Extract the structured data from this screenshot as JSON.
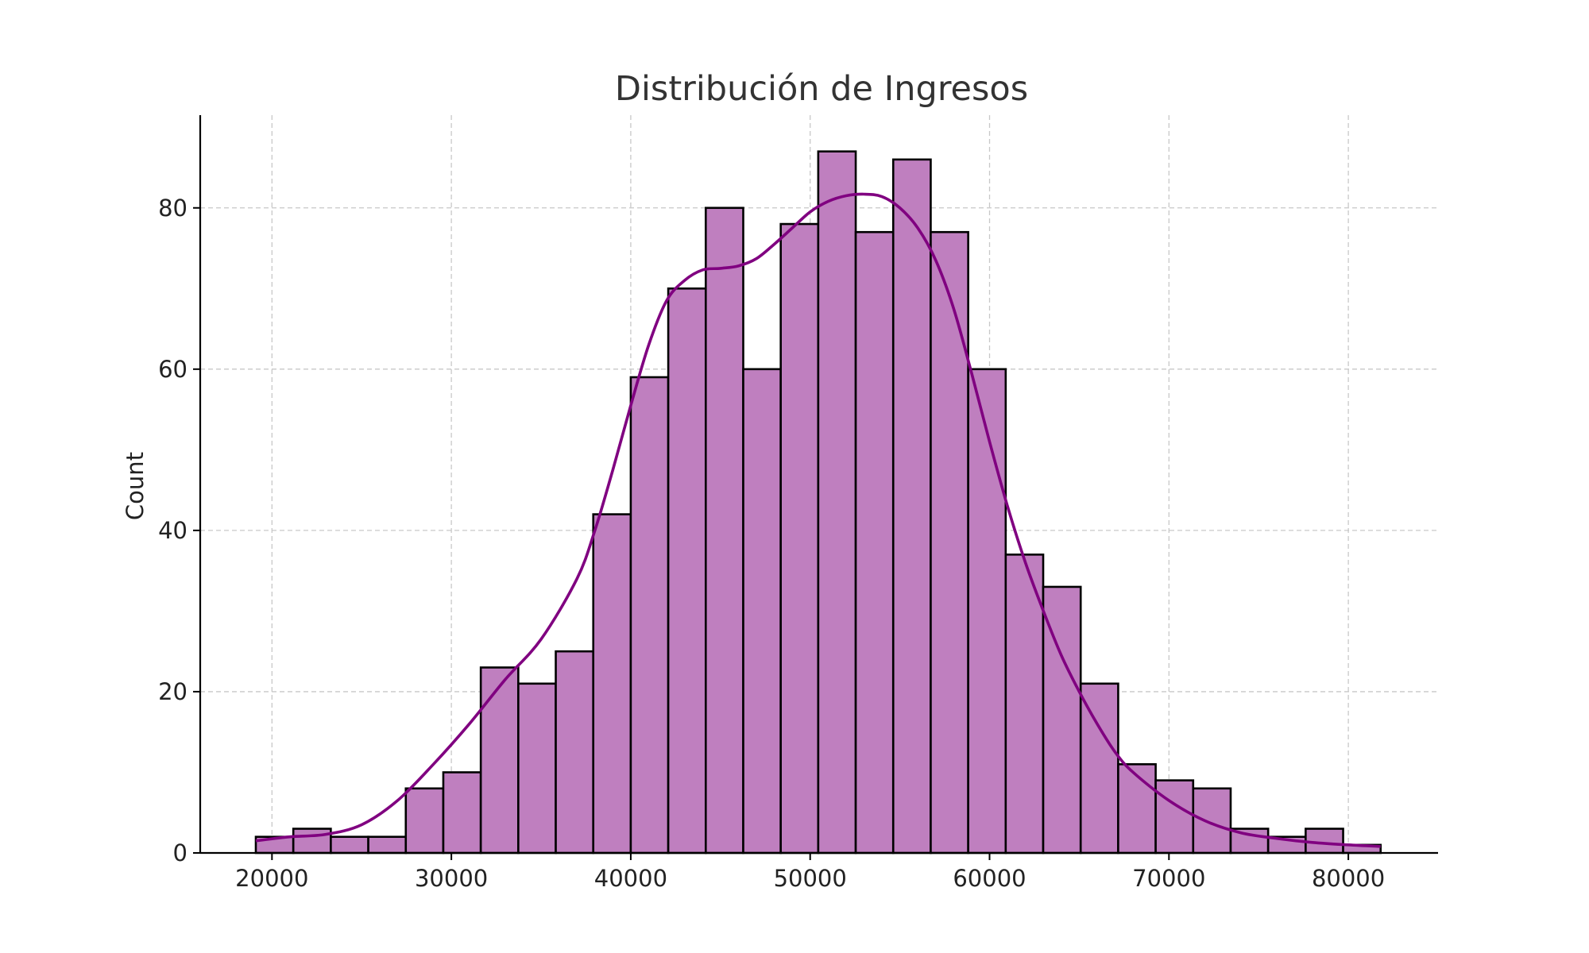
{
  "chart_data": {
    "type": "bar",
    "subtype": "histogram",
    "title": "Distribución de Ingresos",
    "xlabel": "",
    "ylabel": "Count",
    "xlim": [
      16000,
      85000
    ],
    "ylim": [
      0,
      91.5
    ],
    "xticks": [
      20000,
      30000,
      40000,
      50000,
      60000,
      70000,
      80000
    ],
    "yticks": [
      0,
      20,
      40,
      60,
      80
    ],
    "bin_start": 19100,
    "bin_width": 2090,
    "values": [
      2,
      3,
      2,
      2,
      8,
      10,
      23,
      21,
      25,
      42,
      59,
      70,
      80,
      60,
      78,
      87,
      77,
      86,
      77,
      60,
      37,
      33,
      21,
      11,
      9,
      8,
      3,
      2,
      3,
      1
    ],
    "kde": {
      "x": [
        19100,
        21000,
        23000,
        25000,
        27000,
        29000,
        31000,
        33000,
        35000,
        37000,
        38000,
        39000,
        40000,
        41000,
        42000,
        43000,
        44000,
        45000,
        46000,
        47000,
        48000,
        49000,
        50000,
        51000,
        52000,
        53000,
        54000,
        55000,
        56000,
        57000,
        58000,
        59000,
        60000,
        61000,
        62000,
        63000,
        64000,
        65000,
        66000,
        67000,
        68000,
        70000,
        72000,
        74000,
        76000,
        78000,
        80000,
        81800
      ],
      "y": [
        1.5,
        2.0,
        2.3,
        3.5,
        6.5,
        11,
        16,
        21.5,
        26.5,
        34,
        40,
        47.5,
        55.5,
        63,
        68.5,
        71,
        72.3,
        72.5,
        72.8,
        73.7,
        75.5,
        77.5,
        79.5,
        80.8,
        81.5,
        81.7,
        81.4,
        80,
        77.5,
        73.5,
        67.5,
        59.5,
        51,
        43,
        36,
        30,
        24.5,
        20,
        16,
        12.5,
        10,
        6.5,
        4,
        2.5,
        1.8,
        1.3,
        1.0,
        0.8
      ]
    },
    "grid": true,
    "colors": {
      "bar_fill": "#bf7fbf",
      "bar_edge": "#000000",
      "kde_line": "#800080",
      "grid": "#c8c8c8"
    }
  }
}
